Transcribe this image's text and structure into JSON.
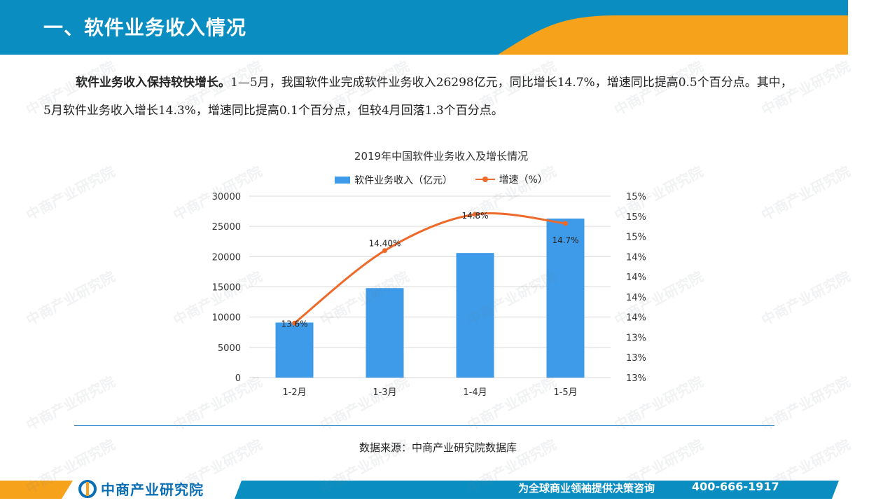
{
  "header": {
    "title": "一、软件业务收入情况"
  },
  "paragraph": {
    "lead": "软件业务收入保持较快增长。",
    "body": "1—5月，我国软件业完成软件业务收入26298亿元，同比增长14.7%，增速同比提高0.5个百分点。其中，5月软件业务收入增长14.3%，增速同比提高0.1个百分点，但较4月回落1.3个百分点。"
  },
  "chart_data": {
    "type": "bar+line",
    "title": "2019年中国软件业务收入及增长情况",
    "categories": [
      "1-2月",
      "1-3月",
      "1-4月",
      "1-5月"
    ],
    "series": [
      {
        "name": "软件业务收入（亿元）",
        "type": "bar",
        "axis": "left",
        "values": [
          9100,
          14800,
          20600,
          26298
        ]
      },
      {
        "name": "增速（%）",
        "type": "line",
        "axis": "right",
        "values": [
          13.6,
          14.4,
          14.8,
          14.7
        ],
        "labels": [
          "13.6%",
          "14.40%",
          "14.8%",
          "14.7%"
        ]
      }
    ],
    "y_left": {
      "range": [
        0,
        30000
      ],
      "ticks": [
        "0",
        "5000",
        "10000",
        "15000",
        "20000",
        "25000",
        "30000"
      ]
    },
    "y_right": {
      "range": [
        13.0,
        15.0
      ],
      "ticks": [
        "13%",
        "13%",
        "13%",
        "14%",
        "14%",
        "14%",
        "14%",
        "15%",
        "15%",
        "15%"
      ]
    },
    "colors": {
      "bar": "#3d9be9",
      "line": "#ee6a2a",
      "grid": "#d9d9d9"
    },
    "grid": true,
    "legend_position": "top"
  },
  "source": "数据来源：中商产业研究院数据库",
  "footer": {
    "logo_text": "中商产业研究院",
    "slogan": "为全球商业领袖提供决策咨询",
    "phone": "400-666-1917"
  },
  "watermark": {
    "text": "中商产业研究院"
  }
}
